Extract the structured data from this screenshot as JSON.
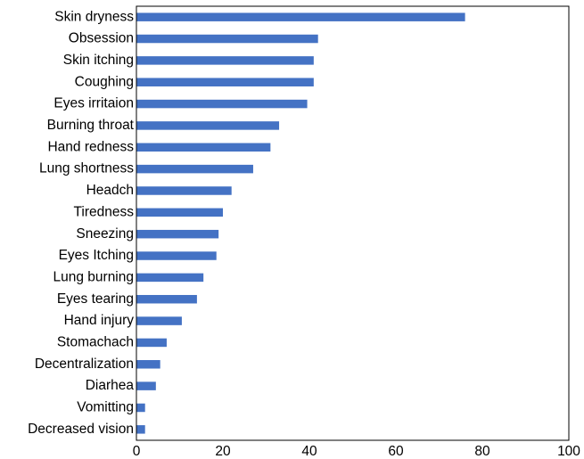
{
  "chart_data": {
    "type": "bar",
    "orientation": "horizontal",
    "title": "",
    "xlabel": "",
    "ylabel": "",
    "xlim": [
      0,
      100
    ],
    "xticks": [
      0,
      20,
      40,
      60,
      80,
      100
    ],
    "grid": false,
    "legend": "none",
    "bar_color": "#4472C4",
    "categories": [
      "Skin dryness",
      "Obsession ",
      "Skin itching",
      "Coughing ",
      "Eyes irritaion ",
      "Burning throat",
      "Hand redness",
      "Lung shortness",
      "Headch",
      "Tiredness",
      "Sneezing ",
      "Eyes Itching",
      "Lung burning",
      "Eyes tearing ",
      "Hand injury",
      "Stomachach",
      "Decentralization",
      "Diarhea",
      "Vomitting ",
      "Decreased vision"
    ],
    "values": [
      76,
      42,
      41,
      41,
      39.5,
      33,
      31,
      27,
      22,
      20,
      19,
      18.5,
      15.5,
      14,
      10.5,
      7,
      5.5,
      4.5,
      2,
      2
    ]
  }
}
